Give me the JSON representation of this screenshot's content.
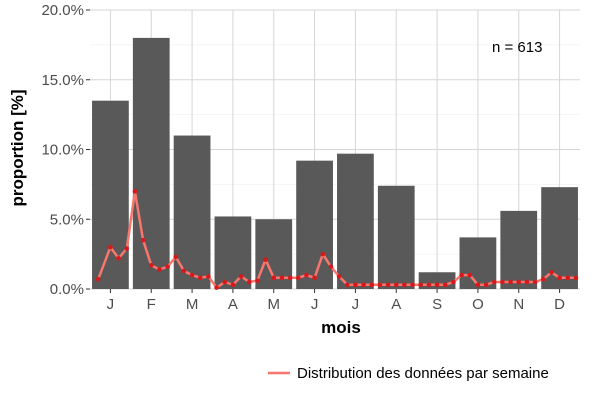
{
  "chart_data": {
    "type": "bar",
    "xlabel": "mois",
    "ylabel": "proportion [%]",
    "categories": [
      "J",
      "F",
      "M",
      "A",
      "M",
      "J",
      "J",
      "A",
      "S",
      "O",
      "N",
      "D"
    ],
    "ylim": [
      0,
      20
    ],
    "yticks": [
      "0.0%",
      "5.0%",
      "10.0%",
      "15.0%",
      "20.0%"
    ],
    "ytick_values": [
      0,
      5,
      10,
      15,
      20
    ],
    "grid": true,
    "annotation": "n = 613",
    "bar_color": "#595959",
    "series": [
      {
        "type": "bar",
        "values": [
          13.5,
          18.0,
          11.0,
          5.2,
          5.0,
          9.2,
          9.7,
          7.4,
          1.2,
          3.7,
          5.6,
          7.3
        ]
      },
      {
        "type": "line",
        "name": "Distribution des données par semaine",
        "color": "#f8766d",
        "point_color": "#d7191c",
        "x": [
          0.7,
          1.0,
          1.2,
          1.4,
          1.6,
          1.8,
          2.0,
          2.2,
          2.4,
          2.6,
          2.8,
          3.0,
          3.2,
          3.4,
          3.6,
          3.8,
          4.0,
          4.2,
          4.4,
          4.6,
          4.8,
          5.0,
          5.2,
          5.4,
          5.6,
          5.8,
          6.0,
          6.2,
          6.4,
          6.6,
          6.8,
          7.0,
          7.2,
          7.4,
          7.6,
          7.8,
          8.0,
          8.2,
          8.4,
          8.6,
          8.8,
          9.0,
          9.2,
          9.4,
          9.6,
          9.8,
          10.0,
          10.2,
          10.4,
          10.6,
          10.8,
          11.0,
          11.2,
          11.4,
          11.6,
          11.8,
          12.0,
          12.2,
          12.4
        ],
        "values": [
          0.7,
          3.0,
          2.2,
          2.9,
          7.0,
          3.5,
          1.7,
          1.4,
          1.6,
          2.3,
          1.3,
          1.0,
          0.8,
          0.9,
          0.1,
          0.5,
          0.3,
          0.9,
          0.5,
          0.6,
          2.1,
          0.8,
          0.8,
          0.8,
          0.8,
          1.0,
          0.8,
          2.5,
          1.6,
          0.9,
          0.3,
          0.3,
          0.3,
          0.3,
          0.3,
          0.3,
          0.3,
          0.3,
          0.3,
          0.3,
          0.3,
          0.3,
          0.3,
          0.5,
          1.0,
          1.0,
          0.3,
          0.3,
          0.5,
          0.5,
          0.5,
          0.5,
          0.5,
          0.5,
          0.7,
          1.2,
          0.8,
          0.8,
          0.8
        ]
      }
    ],
    "legend": {
      "position": "bottom-right",
      "entries": [
        {
          "label": "Distribution des données par semaine",
          "color": "#f8766d"
        }
      ]
    }
  }
}
